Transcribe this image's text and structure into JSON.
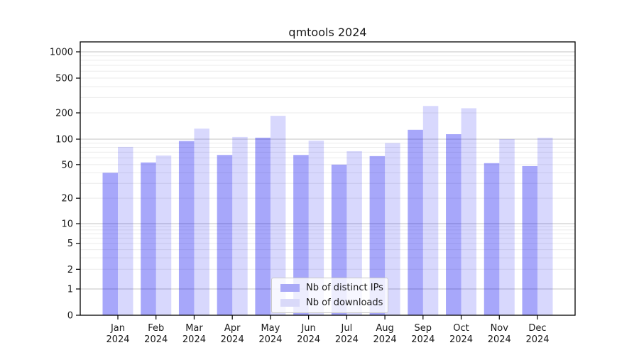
{
  "chart_data": {
    "type": "bar",
    "title": "qmtools 2024",
    "categories": [
      "Jan 2024",
      "Feb 2024",
      "Mar 2024",
      "Apr 2024",
      "May 2024",
      "Jun 2024",
      "Jul 2024",
      "Aug 2024",
      "Sep 2024",
      "Oct 2024",
      "Nov 2024",
      "Dec 2024"
    ],
    "series": [
      {
        "name": "Nb of distinct IPs",
        "fill": "#0000f0",
        "opacity": 0.345,
        "solid_color": "#a9a9f7",
        "values": [
          40,
          53,
          95,
          65,
          104,
          65,
          50,
          63,
          128,
          114,
          52,
          48
        ]
      },
      {
        "name": "Nb of downloads",
        "fill": "#0000f0",
        "opacity": 0.152,
        "solid_color": "#d9d9f9",
        "values": [
          81,
          64,
          132,
          106,
          185,
          96,
          72,
          90,
          240,
          226,
          100,
          104
        ]
      }
    ],
    "yscale": "symlog",
    "yticks": [
      0,
      1,
      2,
      5,
      10,
      20,
      50,
      100,
      200,
      500,
      1000
    ],
    "ylim": [
      0,
      1300
    ],
    "xlabel": "",
    "ylabel": "",
    "grid": "both",
    "legend_position": "lower center"
  },
  "legend": {
    "swatch_colors": [
      "#a9a9f7",
      "#d9d9f9"
    ]
  },
  "colors": {
    "major_grid": "#c3c3c3",
    "minor_grid": "#ebebeb",
    "spine": "#000000",
    "text": "#1a1a1a"
  }
}
